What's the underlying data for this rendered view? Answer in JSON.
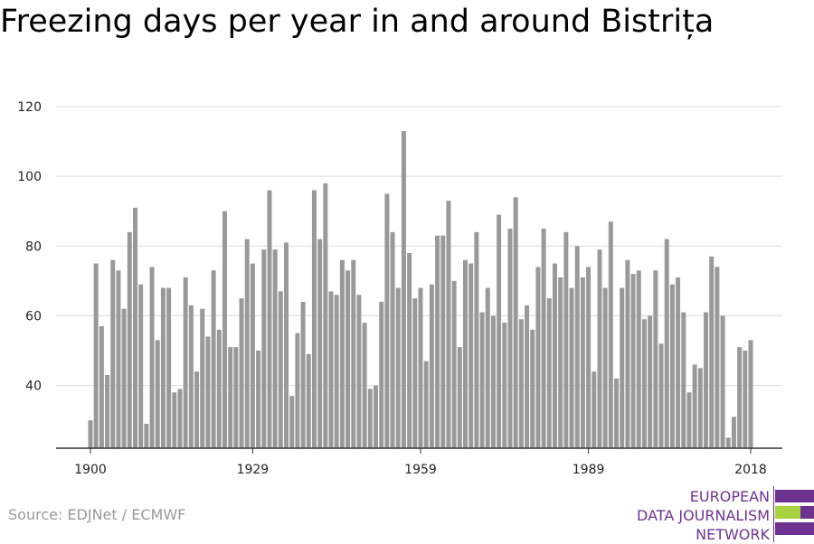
{
  "chart_data": {
    "type": "bar",
    "title": "Freezing days per year in and around Bistrița",
    "xlabel": "",
    "ylabel": "",
    "x": [
      1900,
      1901,
      1902,
      1903,
      1904,
      1905,
      1906,
      1907,
      1908,
      1909,
      1910,
      1911,
      1912,
      1913,
      1914,
      1915,
      1916,
      1917,
      1918,
      1919,
      1920,
      1921,
      1922,
      1923,
      1924,
      1925,
      1926,
      1927,
      1928,
      1929,
      1930,
      1931,
      1932,
      1933,
      1934,
      1935,
      1936,
      1937,
      1938,
      1939,
      1940,
      1941,
      1942,
      1943,
      1944,
      1945,
      1946,
      1947,
      1948,
      1949,
      1950,
      1951,
      1952,
      1953,
      1954,
      1955,
      1956,
      1957,
      1958,
      1959,
      1960,
      1961,
      1962,
      1963,
      1964,
      1965,
      1966,
      1967,
      1968,
      1969,
      1970,
      1971,
      1972,
      1973,
      1974,
      1975,
      1976,
      1977,
      1978,
      1979,
      1980,
      1981,
      1982,
      1983,
      1984,
      1985,
      1986,
      1987,
      1988,
      1989,
      1990,
      1991,
      1992,
      1993,
      1994,
      1995,
      1996,
      1997,
      1998,
      1999,
      2000,
      2001,
      2002,
      2003,
      2004,
      2005,
      2006,
      2007,
      2008,
      2009,
      2010,
      2011,
      2012,
      2013,
      2014,
      2015,
      2016,
      2017,
      2018
    ],
    "values": [
      30,
      75,
      57,
      43,
      76,
      73,
      62,
      84,
      91,
      69,
      29,
      74,
      53,
      68,
      68,
      38,
      39,
      71,
      63,
      44,
      62,
      54,
      73,
      56,
      90,
      51,
      51,
      65,
      82,
      75,
      50,
      79,
      96,
      79,
      67,
      81,
      37,
      55,
      64,
      49,
      96,
      82,
      98,
      67,
      66,
      76,
      73,
      76,
      66,
      58,
      39,
      40,
      64,
      95,
      84,
      68,
      113,
      78,
      65,
      68,
      47,
      69,
      83,
      83,
      93,
      70,
      51,
      76,
      75,
      84,
      61,
      68,
      60,
      89,
      58,
      85,
      94,
      59,
      63,
      56,
      74,
      85,
      65,
      75,
      71,
      84,
      68,
      80,
      71,
      74,
      44,
      79,
      68,
      87,
      42,
      68,
      76,
      72,
      73,
      59,
      60,
      73,
      52,
      82,
      69,
      71,
      61,
      38,
      46,
      45,
      61,
      77,
      74,
      60,
      25,
      31,
      51,
      50,
      53
    ],
    "yticks": [
      40,
      60,
      80,
      100,
      120
    ],
    "xticks": [
      "1900",
      "1929",
      "1959",
      "1989",
      "2018"
    ],
    "ylim": [
      22,
      120
    ],
    "grid": true,
    "color": "#999999"
  },
  "source": "Source: EDJNet / ECMWF",
  "logo": {
    "line1": "EUROPEAN",
    "line2": "DATA JOURNALISM",
    "line3": "NETWORK",
    "purple": "#6e3390",
    "green": "#a8d23f"
  }
}
